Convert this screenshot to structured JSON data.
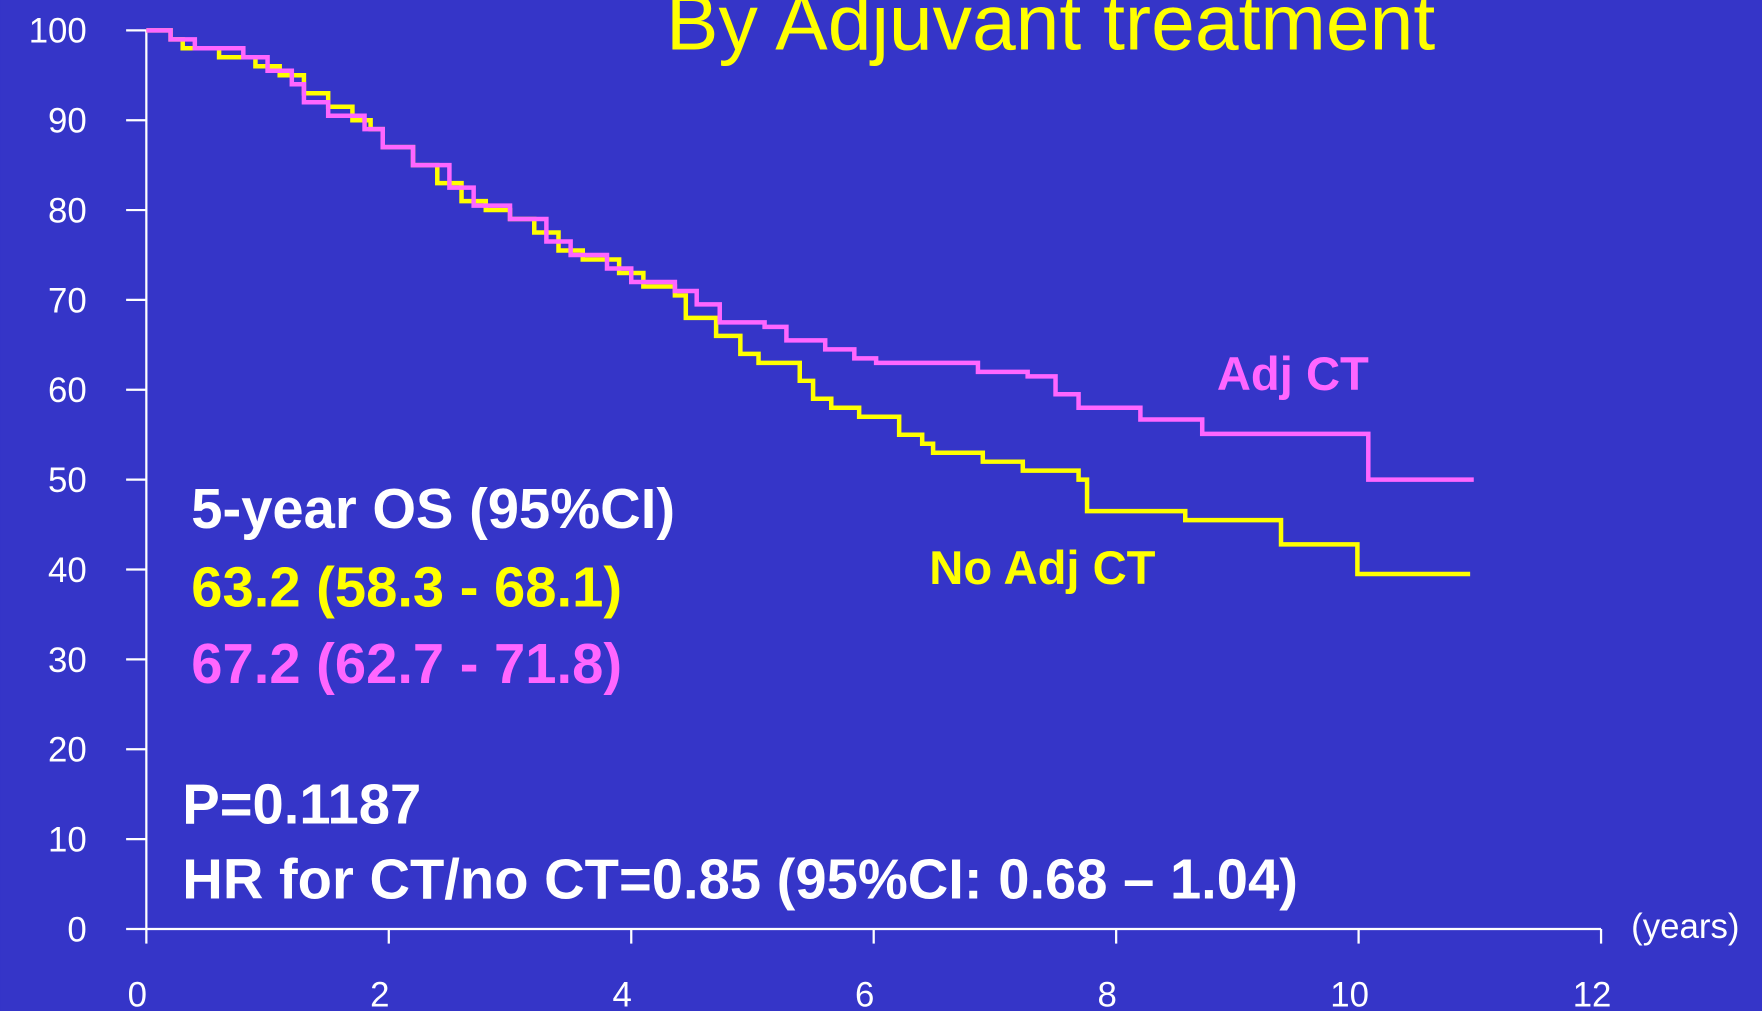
{
  "chart_data": {
    "type": "step",
    "title": "By Adjuvant treatment",
    "x_label": "(years)",
    "xlim": [
      0,
      12
    ],
    "xticks": [
      0,
      2,
      4,
      6,
      8,
      10,
      12
    ],
    "ylim": [
      0,
      100
    ],
    "yticks": [
      0,
      10,
      20,
      30,
      40,
      50,
      60,
      70,
      80,
      90,
      100
    ],
    "series": [
      {
        "name": "No Adj CT",
        "color": "#ffff00",
        "x": [
          0,
          0.2,
          0.3,
          0.6,
          0.9,
          1.1,
          1.3,
          1.5,
          1.7,
          1.85,
          1.95,
          2.2,
          2.4,
          2.6,
          2.8,
          3.0,
          3.2,
          3.4,
          3.6,
          3.9,
          4.1,
          4.36,
          4.45,
          4.7,
          4.9,
          5.05,
          5.39,
          5.5,
          5.65,
          5.88,
          6.21,
          6.4,
          6.49,
          6.9,
          7.23,
          7.69,
          7.76,
          8.57,
          9.36,
          9.99,
          10.92
        ],
        "values": [
          100,
          99,
          98,
          97,
          96,
          95,
          93,
          91.5,
          90,
          89,
          87,
          85,
          83,
          81,
          80,
          79,
          77.5,
          75.5,
          74.5,
          73,
          71.5,
          70.5,
          68,
          66,
          64,
          63,
          61,
          59,
          58,
          57,
          55,
          54,
          53,
          52,
          51,
          50,
          46.5,
          45.5,
          42.8,
          39.5,
          39.5
        ]
      },
      {
        "name": "Adj CT",
        "color": "#ff66ff",
        "x": [
          0,
          0.2,
          0.4,
          0.8,
          1.0,
          1.2,
          1.3,
          1.5,
          1.8,
          1.95,
          2.2,
          2.5,
          2.7,
          3.0,
          3.3,
          3.5,
          3.8,
          4.0,
          4.36,
          4.54,
          4.73,
          5.1,
          5.28,
          5.6,
          5.84,
          6.02,
          6.86,
          7.27,
          7.5,
          7.69,
          8.2,
          8.71,
          10.08,
          10.95
        ],
        "values": [
          100,
          99,
          98,
          97,
          95.5,
          94,
          92,
          90.5,
          89,
          87,
          85,
          82.5,
          80.5,
          79,
          76.5,
          75,
          73.5,
          72,
          71,
          69.5,
          67.5,
          67,
          65.5,
          64.5,
          63.5,
          63,
          62,
          61.5,
          59.5,
          58,
          56.7,
          55.1,
          50,
          50
        ]
      }
    ],
    "annotations": [
      {
        "text": "5-year OS (95%CI)",
        "color": "#ffffff"
      },
      {
        "text": "63.2 (58.3 - 68.1)",
        "color": "#ffff00"
      },
      {
        "text": "67.2 (62.7 - 71.8)",
        "color": "#ff66ff"
      },
      {
        "text": "P=0.1187",
        "color": "#ffffff"
      },
      {
        "text": "HR for CT/no CT=0.85 (95%CI: 0.68 – 1.04)",
        "color": "#ffffff"
      }
    ]
  }
}
